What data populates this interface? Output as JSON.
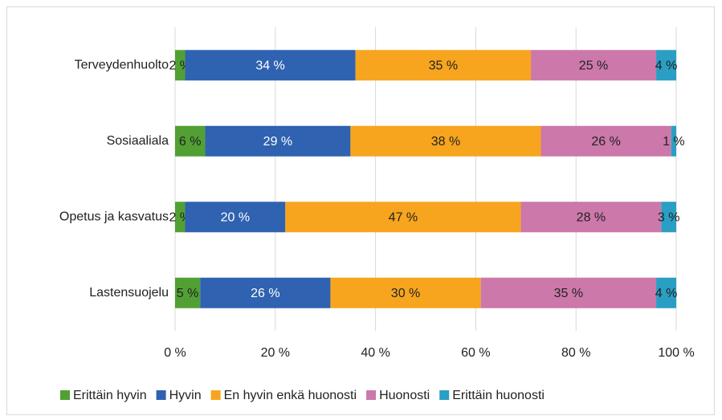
{
  "chart_data": {
    "type": "stacked_barh",
    "categories": [
      "Terveydenhuolto",
      "Sosiaaliala",
      "Opetus ja kasvatus",
      "Lastensuojelu"
    ],
    "series": [
      {
        "name": "Erittäin hyvin",
        "color": "#52a034",
        "label_color": "#222222",
        "values": [
          2,
          6,
          2,
          5
        ],
        "value_labels": [
          "2 %",
          "6 %",
          "2 %",
          "5 %"
        ]
      },
      {
        "name": "Hyvin",
        "color": "#2f62b0",
        "label_color": "#ffffff",
        "values": [
          34,
          29,
          20,
          26
        ],
        "value_labels": [
          "34 %",
          "29 %",
          "20 %",
          "26 %"
        ]
      },
      {
        "name": "En hyvin enkä huonosti",
        "color": "#f7a51e",
        "label_color": "#222222",
        "values": [
          35,
          38,
          47,
          30
        ],
        "value_labels": [
          "35 %",
          "38 %",
          "47 %",
          "30 %"
        ]
      },
      {
        "name": "Huonosti",
        "color": "#cc78aa",
        "label_color": "#222222",
        "values": [
          25,
          26,
          28,
          35
        ],
        "value_labels": [
          "25 %",
          "26 %",
          "28 %",
          "35 %"
        ]
      },
      {
        "name": "Erittäin huonosti",
        "color": "#2b9ec3",
        "label_color": "#222222",
        "values": [
          4,
          1,
          3,
          4
        ],
        "value_labels": [
          "4 %",
          "1 %",
          "3 %",
          "4 %"
        ]
      }
    ],
    "xlim": [
      0,
      100
    ],
    "xticks": [
      {
        "value": 0,
        "label": "0 %"
      },
      {
        "value": 20,
        "label": "20 %"
      },
      {
        "value": 40,
        "label": "40 %"
      },
      {
        "value": 60,
        "label": "60 %"
      },
      {
        "value": 80,
        "label": "80 %"
      },
      {
        "value": 100,
        "label": "100 %"
      }
    ],
    "grid": true,
    "legend": "bottom"
  }
}
